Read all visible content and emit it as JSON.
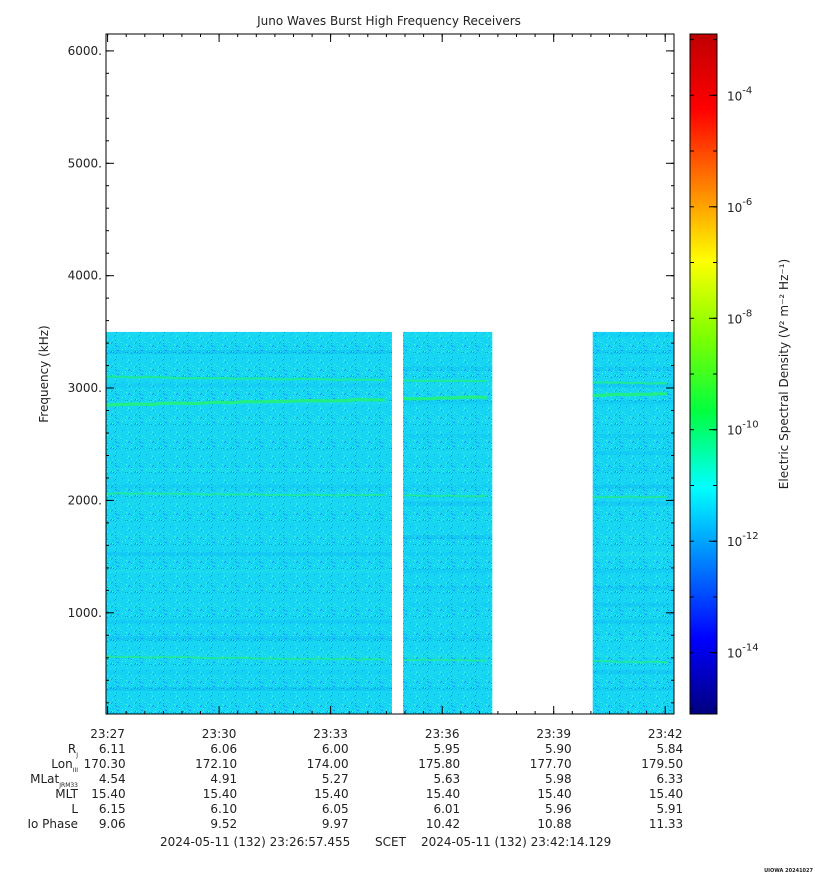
{
  "chart_data": {
    "type": "heatmap",
    "title": "Juno Waves Burst High Frequency Receivers",
    "ylabel": "Frequency (kHz)",
    "ylim": [
      100,
      6150
    ],
    "y_ticks": [
      {
        "value": 1000,
        "label": "1000."
      },
      {
        "value": 2000,
        "label": "2000."
      },
      {
        "value": 3000,
        "label": "3000."
      },
      {
        "value": 4000,
        "label": "4000."
      },
      {
        "value": 5000,
        "label": "5000."
      },
      {
        "value": 6000,
        "label": "6000."
      }
    ],
    "x_range_minutes": [
      26.957,
      42.236
    ],
    "x_ticks": [
      {
        "minute": 27,
        "label": "23:27"
      },
      {
        "minute": 30,
        "label": "23:30"
      },
      {
        "minute": 33,
        "label": "23:33"
      },
      {
        "minute": 36,
        "label": "23:36"
      },
      {
        "minute": 39,
        "label": "23:39"
      },
      {
        "minute": 42,
        "label": "23:42"
      }
    ],
    "data_segments_minutes": [
      [
        26.957,
        34.65
      ],
      [
        34.95,
        37.35
      ],
      [
        40.05,
        42.236
      ]
    ],
    "max_frequency_khz": 3500,
    "emission_lines": [
      {
        "name": "upper band",
        "freq_start": 3100,
        "freq_end": 3040,
        "intensity": 0.55
      },
      {
        "name": "main band",
        "freq_start": 2850,
        "freq_end": 2950,
        "intensity": 1.0
      },
      {
        "name": "mid band",
        "freq_start": 2060,
        "freq_end": 2030,
        "intensity": 0.45
      },
      {
        "name": "low band",
        "freq_start": 610,
        "freq_end": 560,
        "intensity": 0.45
      }
    ],
    "colorbar": {
      "label": "Electric Spectral Density (V² m⁻² Hz⁻¹)",
      "log_range": [
        -15.1,
        -2.9
      ],
      "ticks": [
        {
          "exp": -4,
          "label": "-4"
        },
        {
          "exp": -6,
          "label": "-6"
        },
        {
          "exp": -8,
          "label": "-8"
        },
        {
          "exp": -10,
          "label": "-10"
        },
        {
          "exp": -12,
          "label": "-12"
        },
        {
          "exp": -14,
          "label": "-14"
        }
      ],
      "colors": [
        "#00007f",
        "#0000ff",
        "#007fff",
        "#00ffff",
        "#00ff40",
        "#7fff00",
        "#ffff00",
        "#ff7f00",
        "#ff0000",
        "#bf0000"
      ]
    },
    "ephemeris": {
      "rows": [
        {
          "label": "R",
          "sub": "J",
          "values": [
            "6.11",
            "6.06",
            "6.00",
            "5.95",
            "5.90",
            "5.84"
          ]
        },
        {
          "label": "Lon",
          "sub": "III",
          "values": [
            "170.30",
            "172.10",
            "174.00",
            "175.80",
            "177.70",
            "179.50"
          ]
        },
        {
          "label": "MLat",
          "sub": "JRM33",
          "values": [
            "4.54",
            "4.91",
            "5.27",
            "5.63",
            "5.98",
            "6.33"
          ]
        },
        {
          "label": "MLT",
          "sub": "",
          "values": [
            "15.40",
            "15.40",
            "15.40",
            "15.40",
            "15.40",
            "15.40"
          ]
        },
        {
          "label": "L",
          "sub": "",
          "values": [
            "6.15",
            "6.10",
            "6.05",
            "6.01",
            "5.96",
            "5.91"
          ]
        },
        {
          "label": "Io Phase",
          "sub": "",
          "values": [
            "9.06",
            "9.52",
            "9.97",
            "10.42",
            "10.88",
            "11.33"
          ]
        }
      ]
    },
    "footer": {
      "start": "2024-05-11 (132) 23:26:57.455",
      "middle": "SCET",
      "end": "2024-05-11 (132) 23:42:14.129"
    },
    "watermark": "UIOWA 20241027"
  }
}
